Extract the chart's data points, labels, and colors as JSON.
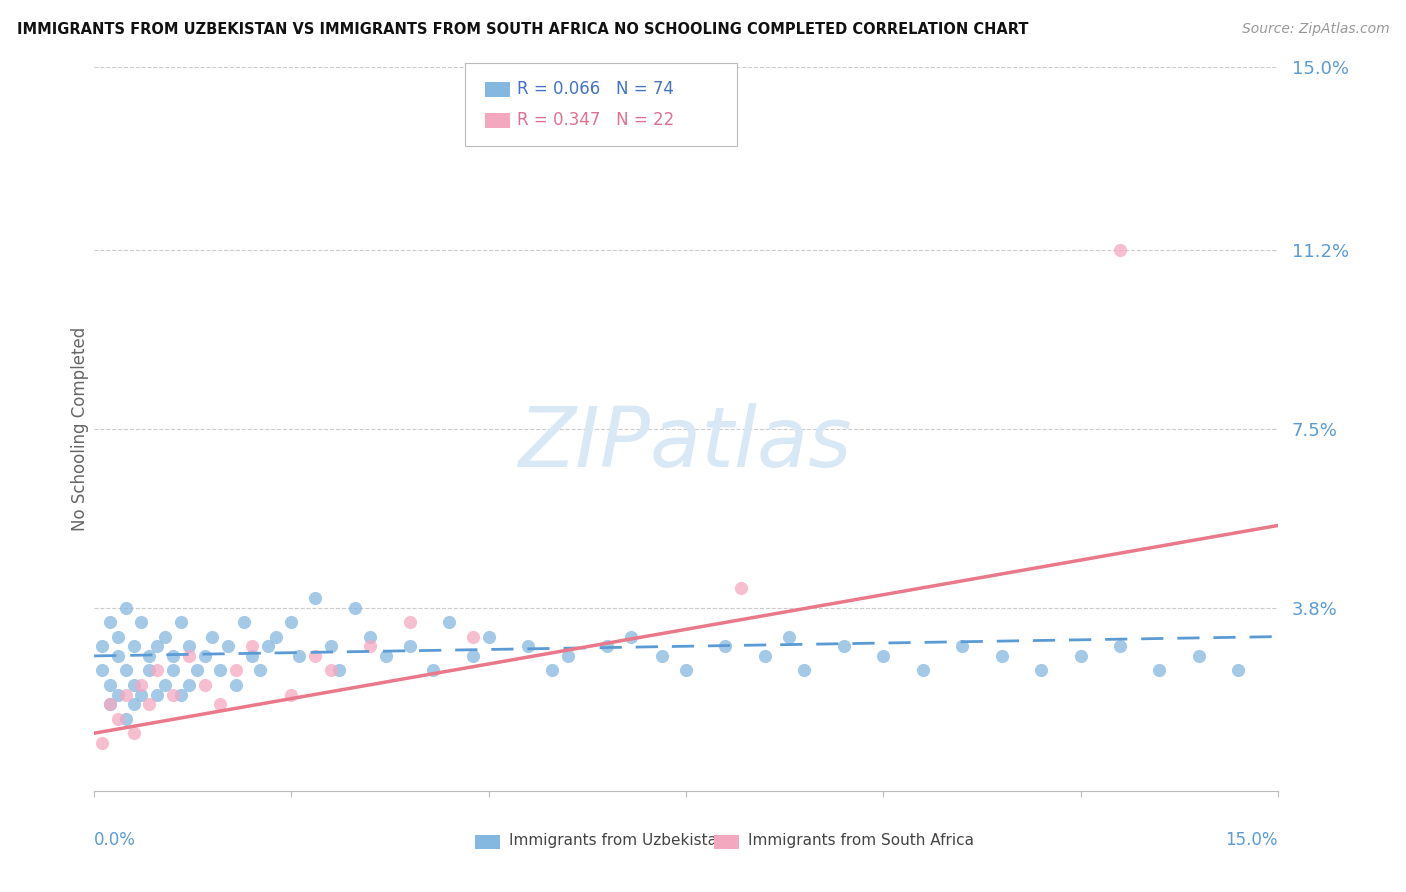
{
  "title": "IMMIGRANTS FROM UZBEKISTAN VS IMMIGRANTS FROM SOUTH AFRICA NO SCHOOLING COMPLETED CORRELATION CHART",
  "source": "Source: ZipAtlas.com",
  "ylabel": "No Schooling Completed",
  "ytick_vals": [
    0.038,
    0.075,
    0.112,
    0.15
  ],
  "ytick_labels": [
    "3.8%",
    "7.5%",
    "11.2%",
    "15.0%"
  ],
  "xlim": [
    0.0,
    0.15
  ],
  "ylim": [
    0.0,
    0.15
  ],
  "legend_r1": "R = 0.066",
  "legend_n1": "N = 74",
  "legend_r2": "R = 0.347",
  "legend_n2": "N = 22",
  "color_blue": "#85B8E0",
  "color_pink": "#F4A8C0",
  "color_blue_line": "#5B9BD5",
  "color_pink_line": "#E8788A",
  "color_tick_label": "#5B9BD5",
  "watermark_color": "#D8E8F5",
  "background_color": "#FFFFFF",
  "blue_scatter_x": [
    0.001,
    0.001,
    0.002,
    0.002,
    0.002,
    0.003,
    0.003,
    0.003,
    0.004,
    0.004,
    0.004,
    0.005,
    0.005,
    0.005,
    0.006,
    0.006,
    0.007,
    0.007,
    0.008,
    0.008,
    0.009,
    0.009,
    0.01,
    0.01,
    0.011,
    0.011,
    0.012,
    0.012,
    0.013,
    0.014,
    0.015,
    0.016,
    0.017,
    0.018,
    0.019,
    0.02,
    0.021,
    0.022,
    0.023,
    0.025,
    0.026,
    0.028,
    0.03,
    0.031,
    0.033,
    0.035,
    0.037,
    0.04,
    0.043,
    0.045,
    0.048,
    0.05,
    0.055,
    0.058,
    0.06,
    0.065,
    0.068,
    0.072,
    0.075,
    0.08,
    0.085,
    0.088,
    0.09,
    0.095,
    0.1,
    0.105,
    0.11,
    0.115,
    0.12,
    0.125,
    0.13,
    0.135,
    0.14,
    0.145
  ],
  "blue_scatter_y": [
    0.025,
    0.03,
    0.018,
    0.022,
    0.035,
    0.02,
    0.028,
    0.032,
    0.015,
    0.025,
    0.038,
    0.018,
    0.022,
    0.03,
    0.02,
    0.035,
    0.025,
    0.028,
    0.02,
    0.03,
    0.022,
    0.032,
    0.025,
    0.028,
    0.02,
    0.035,
    0.022,
    0.03,
    0.025,
    0.028,
    0.032,
    0.025,
    0.03,
    0.022,
    0.035,
    0.028,
    0.025,
    0.03,
    0.032,
    0.035,
    0.028,
    0.04,
    0.03,
    0.025,
    0.038,
    0.032,
    0.028,
    0.03,
    0.025,
    0.035,
    0.028,
    0.032,
    0.03,
    0.025,
    0.028,
    0.03,
    0.032,
    0.028,
    0.025,
    0.03,
    0.028,
    0.032,
    0.025,
    0.03,
    0.028,
    0.025,
    0.03,
    0.028,
    0.025,
    0.028,
    0.03,
    0.025,
    0.028,
    0.025
  ],
  "pink_scatter_x": [
    0.001,
    0.002,
    0.003,
    0.004,
    0.005,
    0.006,
    0.007,
    0.008,
    0.01,
    0.012,
    0.014,
    0.016,
    0.018,
    0.02,
    0.025,
    0.028,
    0.03,
    0.035,
    0.04,
    0.048,
    0.13,
    0.082
  ],
  "pink_scatter_y": [
    0.01,
    0.018,
    0.015,
    0.02,
    0.012,
    0.022,
    0.018,
    0.025,
    0.02,
    0.028,
    0.022,
    0.018,
    0.025,
    0.03,
    0.02,
    0.028,
    0.025,
    0.03,
    0.035,
    0.032,
    0.112,
    0.042
  ],
  "blue_line_x": [
    0.0,
    0.15
  ],
  "blue_line_y": [
    0.028,
    0.032
  ],
  "pink_line_x": [
    0.0,
    0.15
  ],
  "pink_line_y": [
    0.012,
    0.055
  ]
}
